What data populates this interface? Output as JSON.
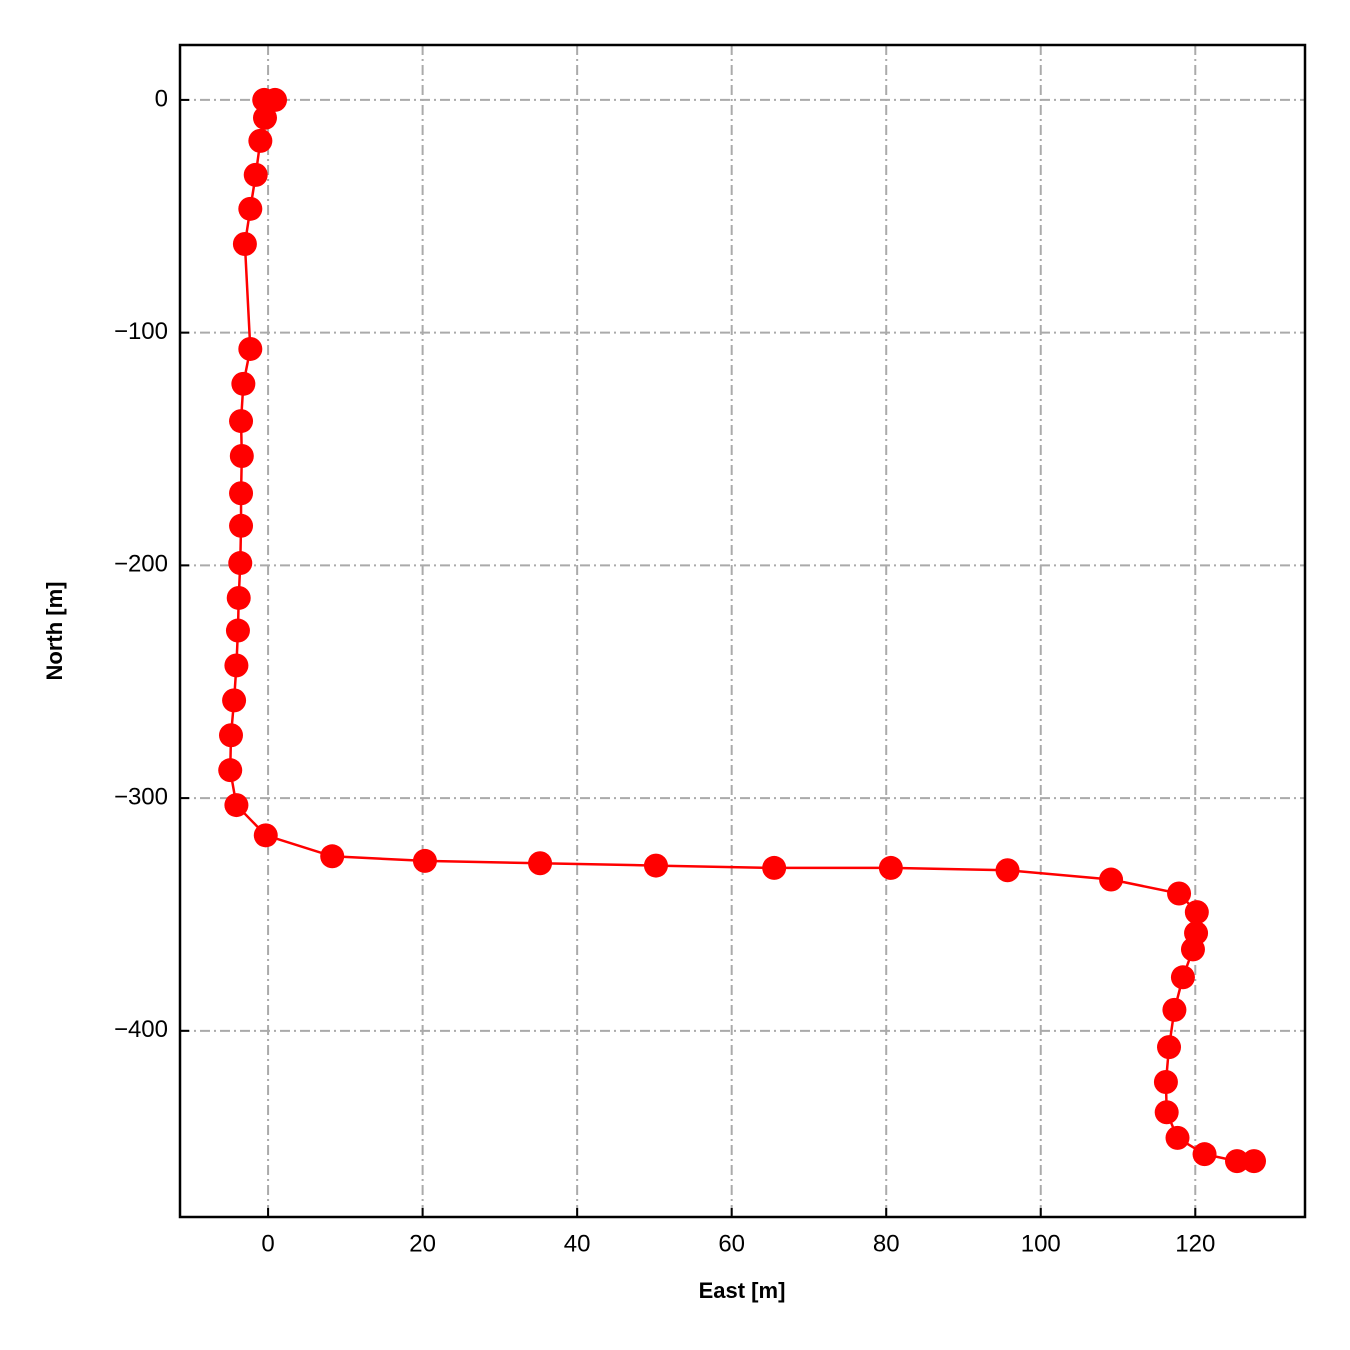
{
  "chart_data": {
    "type": "line",
    "x_label": "East [m]",
    "y_label": "North [m]",
    "xlim": [
      -11.4,
      134.2
    ],
    "ylim": [
      -480,
      23.6
    ],
    "xticks": [
      0,
      20,
      40,
      60,
      80,
      100,
      120
    ],
    "yticks": [
      0,
      {
        "value": -100,
        "label": "−100"
      },
      {
        "value": -200,
        "label": "−200"
      },
      {
        "value": -300,
        "label": "−300"
      },
      {
        "value": -400,
        "label": "−400"
      }
    ],
    "grid": true,
    "series": [
      {
        "color": "#ff0000",
        "x": [
          0.9,
          -0.5,
          -0.4,
          -1.0,
          -1.6,
          -2.3,
          -3.0,
          -2.3,
          -3.2,
          -3.5,
          -3.4,
          -3.5,
          -3.5,
          -3.6,
          -3.8,
          -3.9,
          -4.1,
          -4.4,
          -4.8,
          -4.9,
          -4.1,
          -0.3,
          8.3,
          20.3,
          35.2,
          50.2,
          65.5,
          80.6,
          95.7,
          109.1,
          117.9,
          120.2,
          120.1,
          119.7,
          118.4,
          117.3,
          116.6,
          116.2,
          116.3,
          117.7,
          121.2,
          125.4,
          127.6
        ],
        "values": [
          0,
          0,
          -7.7,
          -17.6,
          -32.2,
          -46.8,
          -61.9,
          -107,
          -122,
          -138,
          -153,
          -169,
          -183,
          -199,
          -214,
          -228,
          -243,
          -258,
          -273,
          -288,
          -303,
          -316,
          -325,
          -327,
          -328,
          -329,
          -330,
          -330,
          -331,
          -335,
          -341,
          -349,
          -358,
          -365,
          -377,
          -391,
          -407,
          -422,
          -435,
          -446,
          -453,
          -456,
          -456
        ]
      }
    ]
  }
}
